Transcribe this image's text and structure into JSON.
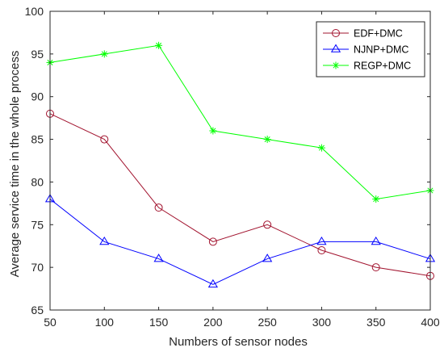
{
  "chart_data": {
    "type": "line",
    "title": "",
    "xlabel": "Numbers of sensor nodes",
    "ylabel": "Average service time in the whole process",
    "x": [
      50,
      100,
      150,
      200,
      250,
      300,
      350,
      400
    ],
    "xlim": [
      50,
      400
    ],
    "ylim": [
      65,
      100
    ],
    "xticks": [
      50,
      100,
      150,
      200,
      250,
      300,
      350,
      400
    ],
    "yticks": [
      65,
      70,
      75,
      80,
      85,
      90,
      95,
      100
    ],
    "grid": false,
    "legend_position": "top-right",
    "series": [
      {
        "name": "EDF+DMC",
        "values": [
          88,
          85,
          77,
          73,
          75,
          72,
          70,
          69
        ],
        "color": "#a2142f",
        "marker": "circle"
      },
      {
        "name": "NJNP+DMC",
        "values": [
          78,
          73,
          71,
          68,
          71,
          73,
          73,
          71
        ],
        "color": "#0000ff",
        "marker": "triangle"
      },
      {
        "name": "REGP+DMC",
        "values": [
          94,
          95,
          96,
          86,
          85,
          84,
          78,
          79
        ],
        "color": "#00ff00",
        "marker": "asterisk"
      }
    ]
  }
}
